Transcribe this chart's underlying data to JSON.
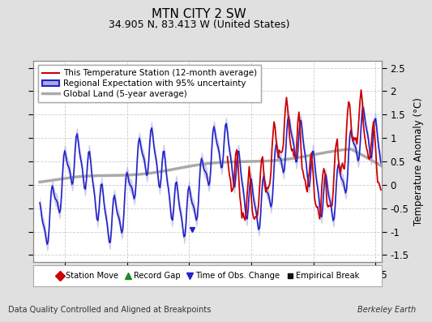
{
  "title": "MTN CITY 2 SW",
  "subtitle": "34.905 N, 83.413 W (United States)",
  "xlabel_bottom": "Data Quality Controlled and Aligned at Breakpoints",
  "xlabel_right": "Berkeley Earth",
  "ylabel": "Temperature Anomaly (°C)",
  "xlim": [
    1987.5,
    2015.5
  ],
  "ylim": [
    -1.65,
    2.65
  ],
  "yticks": [
    -1.5,
    -1.0,
    -0.5,
    0.0,
    0.5,
    1.0,
    1.5,
    2.0,
    2.5
  ],
  "ytick_labels": [
    "-1.5",
    "-1",
    "-0.5",
    "0",
    "0.5",
    "1",
    "1.5",
    "2",
    "2.5"
  ],
  "xticks": [
    1990,
    1995,
    2000,
    2005,
    2010,
    2015
  ],
  "fig_bg_color": "#e0e0e0",
  "plot_bg_color": "#ffffff",
  "global_land_color": "#aaaaaa",
  "regional_color": "#2222cc",
  "regional_uncertainty_color": "#aaaadd",
  "station_color": "#cc0000",
  "grid_color": "#cccccc",
  "legend_line_entries": [
    {
      "label": "This Temperature Station (12-month average)",
      "color": "#cc0000",
      "lw": 1.5
    },
    {
      "label": "Regional Expectation with 95% uncertainty",
      "color": "#2222cc",
      "lw": 1.5,
      "band_color": "#bbbbee"
    },
    {
      "label": "Global Land (5-year average)",
      "color": "#aaaaaa",
      "lw": 2.5
    }
  ],
  "legend_marker_entries": [
    {
      "label": "Station Move",
      "color": "#cc0000",
      "marker": "D",
      "size": 6
    },
    {
      "label": "Record Gap",
      "color": "#228822",
      "marker": "^",
      "size": 6
    },
    {
      "label": "Time of Obs. Change",
      "color": "#2222cc",
      "marker": "v",
      "size": 6
    },
    {
      "label": "Empirical Break",
      "color": "#111111",
      "marker": "s",
      "size": 5
    }
  ],
  "obs_change_year": 2000.25,
  "obs_change_anomaly": -0.95
}
